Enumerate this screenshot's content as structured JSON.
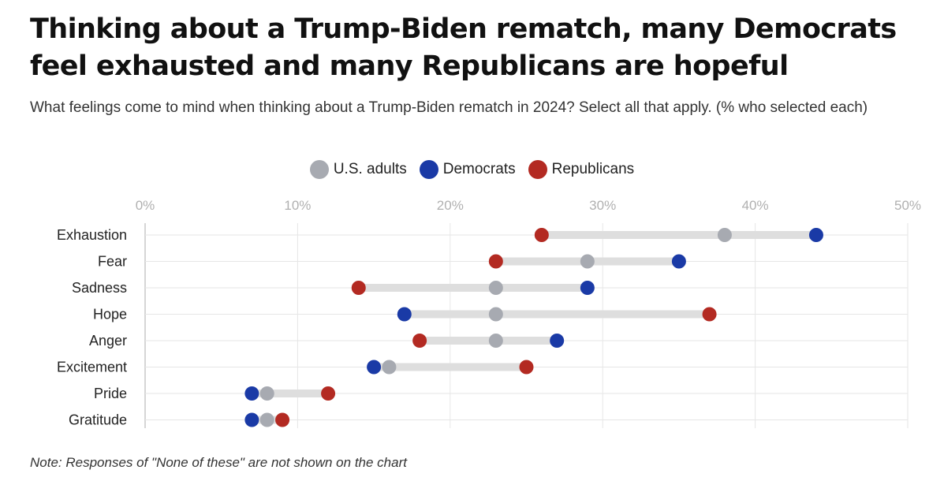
{
  "title": "Thinking about a Trump-Biden rematch, many Democrats feel exhausted and many Republicans are hopeful",
  "subtitle": "What feelings come to mind when thinking about a Trump-Biden rematch in 2024? Select all that apply. (% who selected each)",
  "note": "Note: Responses of \"None of these\" are not shown on the chart",
  "colors": {
    "us_adults": "#a7aab1",
    "democrats": "#1a3aa6",
    "republicans": "#b32a22",
    "connector": "#dedede",
    "grid": "#e6e6e6",
    "tick_text": "#b0b0b0"
  },
  "chart_data": {
    "type": "dot-plot",
    "title": "",
    "xlabel": "",
    "ylabel": "",
    "xlim": [
      0,
      50
    ],
    "x_ticks": [
      0,
      10,
      20,
      30,
      40,
      50
    ],
    "x_tick_labels": [
      "0%",
      "10%",
      "20%",
      "30%",
      "40%",
      "50%"
    ],
    "grid": true,
    "legend_position": "top-center",
    "categories": [
      "Exhaustion",
      "Fear",
      "Sadness",
      "Hope",
      "Anger",
      "Excitement",
      "Pride",
      "Gratitude"
    ],
    "series": [
      {
        "name": "U.S. adults",
        "color": "#a7aab1",
        "values": [
          38,
          29,
          23,
          23,
          23,
          16,
          8,
          8
        ]
      },
      {
        "name": "Democrats",
        "color": "#1a3aa6",
        "values": [
          44,
          35,
          29,
          17,
          27,
          15,
          7,
          7
        ]
      },
      {
        "name": "Republicans",
        "color": "#b32a22",
        "values": [
          26,
          23,
          14,
          37,
          18,
          25,
          12,
          9
        ]
      }
    ]
  }
}
